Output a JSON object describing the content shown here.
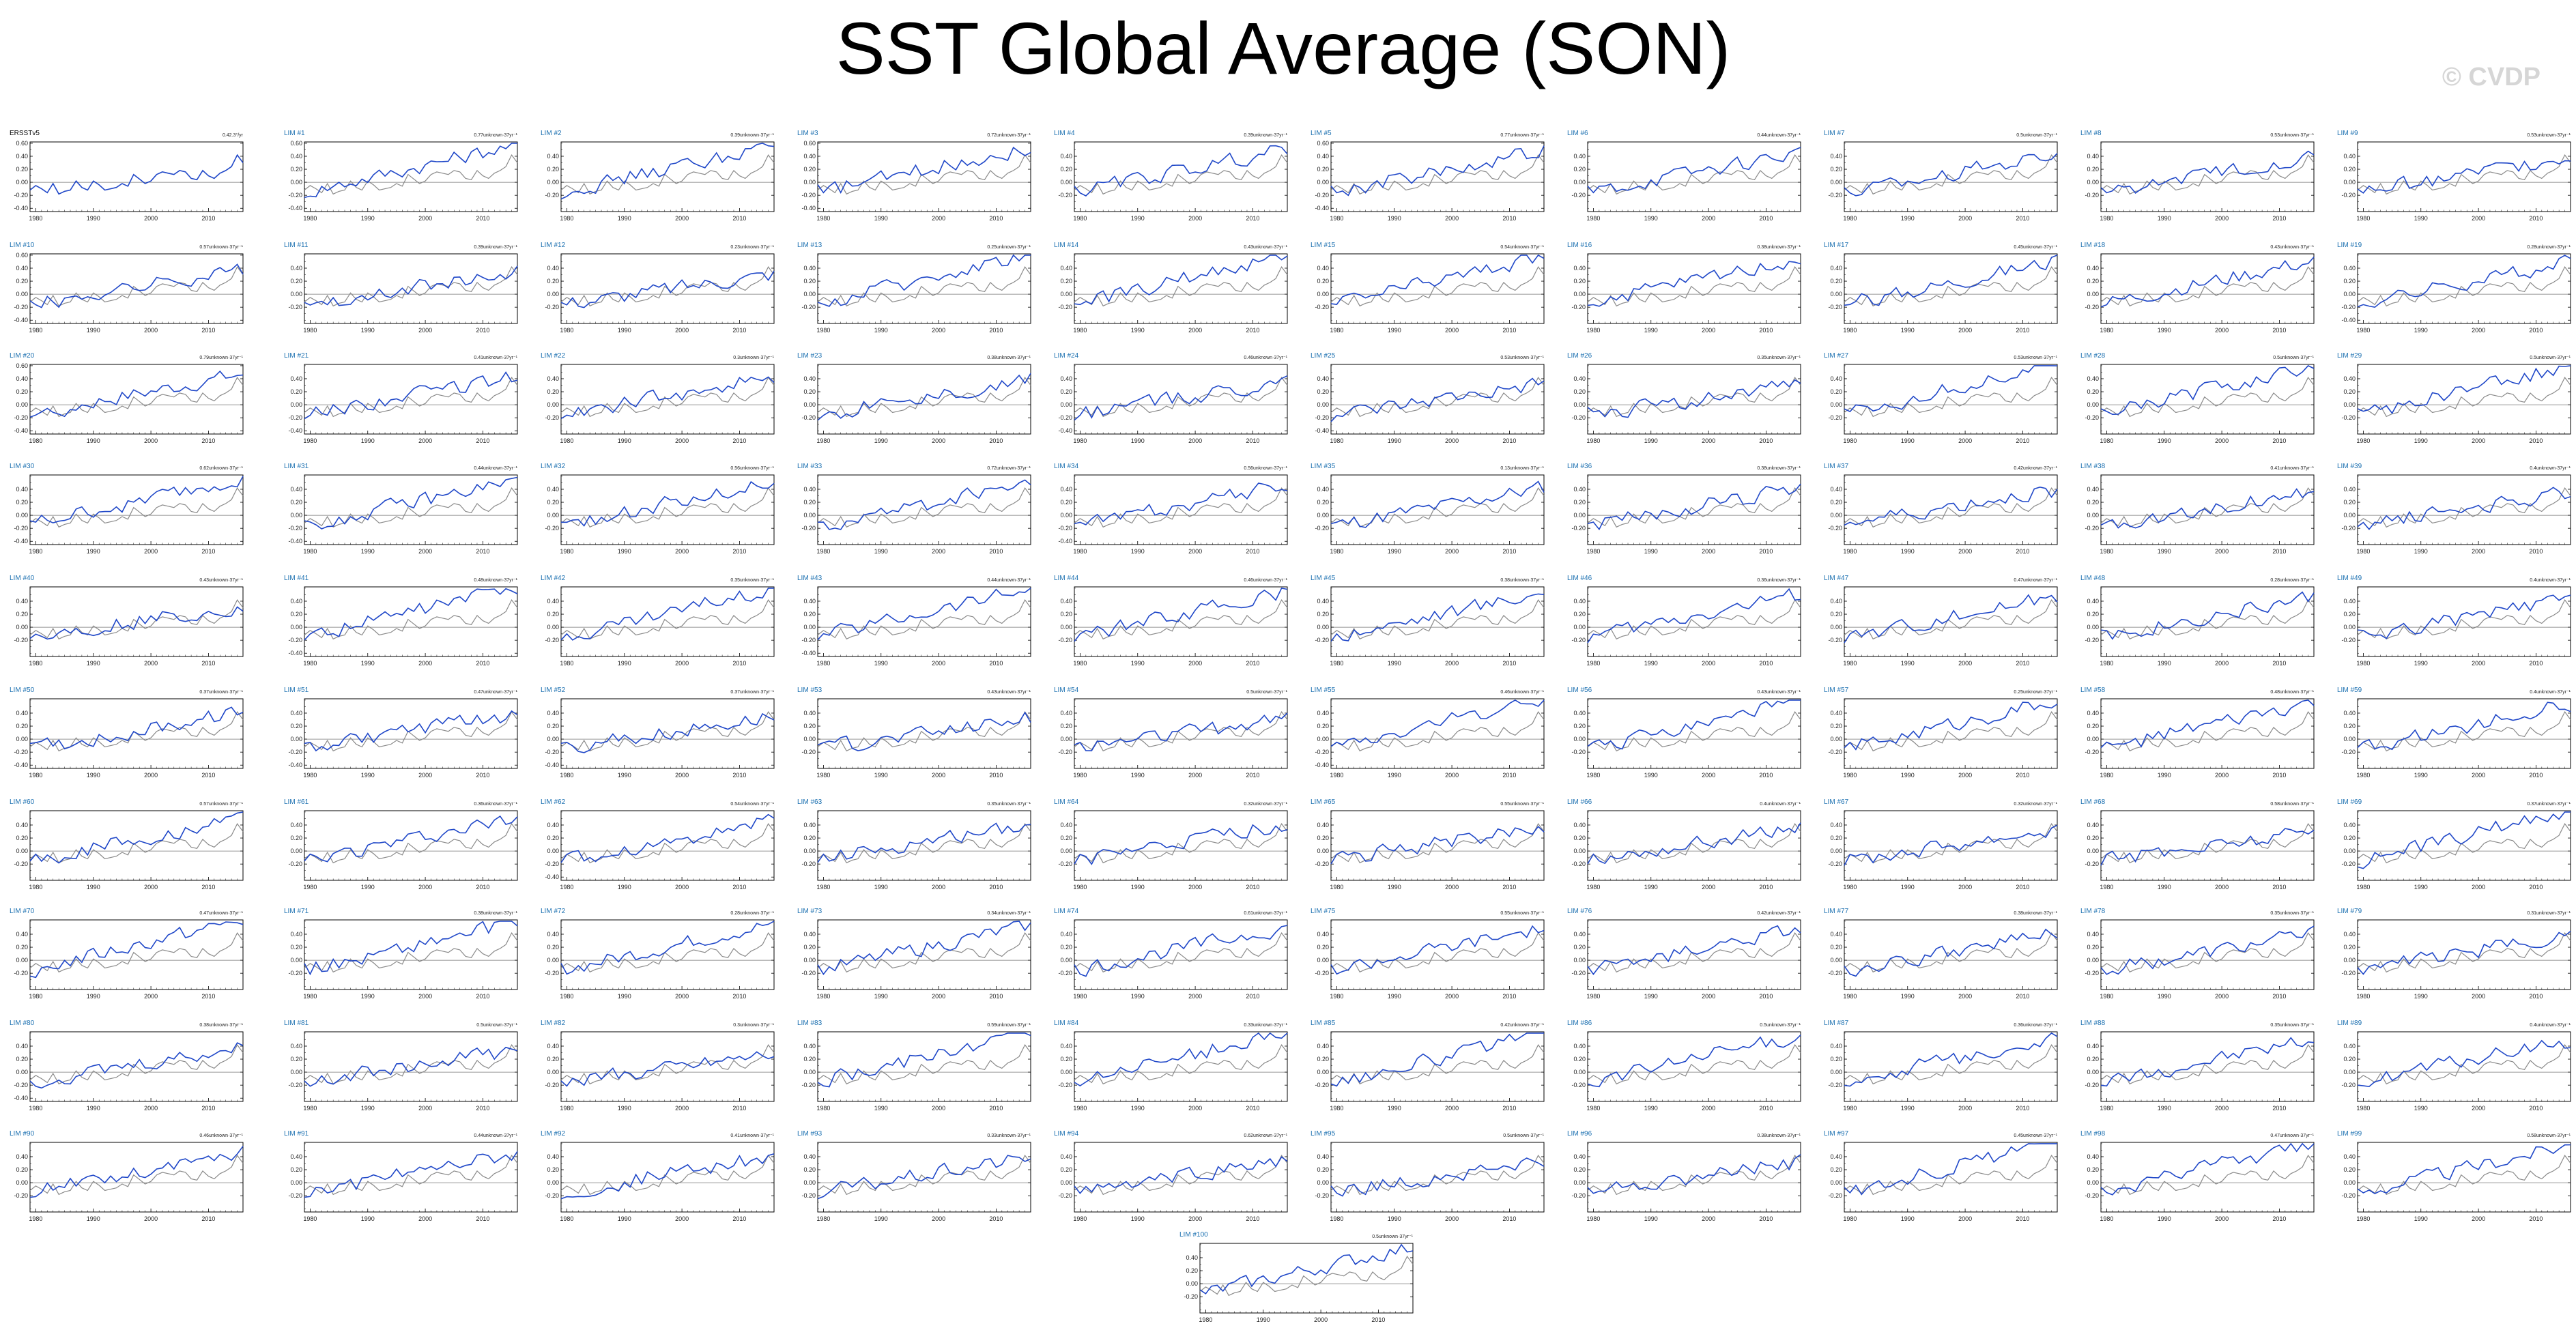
{
  "title": "SST Global Average (SON)",
  "watermark": "© CVDP",
  "colors": {
    "lim": "#1f47c8",
    "obs": "#111111",
    "obs_overlay": "#8a8a8a",
    "zero_line": "#777777",
    "title_lim": "#1a6fb0",
    "title_obs": "#000000"
  },
  "x_ticks": [
    "1980",
    "1990",
    "2000",
    "2010"
  ],
  "panels": [
    {
      "label": "ERSSTv5",
      "note": "0.42.3°/yr",
      "y_ticks": [
        "0.60",
        "0.40",
        "0.20",
        "0.00",
        "-0.20",
        "-0.40"
      ]
    },
    {
      "label": "LIM #1",
      "note": "0.77unknown·37yr⁻¹",
      "y_ticks": [
        "0.60",
        "0.40",
        "0.20",
        "0.00",
        "-0.20",
        "-0.40"
      ]
    },
    {
      "label": "LIM #2",
      "note": "0.39unknown·37yr⁻¹",
      "y_ticks": [
        "0.40",
        "0.20",
        "0.00",
        "-0.20"
      ]
    },
    {
      "label": "LIM #3",
      "note": "0.72unknown·37yr⁻¹",
      "y_ticks": [
        "0.60",
        "0.40",
        "0.20",
        "0.00",
        "-0.20",
        "-0.40"
      ]
    },
    {
      "label": "LIM #4",
      "note": "0.39unknown·37yr⁻¹",
      "y_ticks": [
        "0.40",
        "0.20",
        "0.00",
        "-0.20"
      ]
    },
    {
      "label": "LIM #5",
      "note": "0.77unknown·37yr⁻¹",
      "y_ticks": [
        "0.60",
        "0.40",
        "0.20",
        "0.00",
        "-0.20",
        "-0.40"
      ]
    },
    {
      "label": "LIM #6",
      "note": "0.44unknown·37yr⁻¹",
      "y_ticks": [
        "0.40",
        "0.20",
        "0.00",
        "-0.20"
      ]
    },
    {
      "label": "LIM #7",
      "note": "0.5unknown·37yr⁻¹",
      "y_ticks": [
        "0.40",
        "0.20",
        "0.00",
        "-0.20"
      ]
    },
    {
      "label": "LIM #8",
      "note": "0.53unknown·37yr⁻¹",
      "y_ticks": [
        "0.40",
        "0.20",
        "0.00",
        "-0.20"
      ]
    },
    {
      "label": "LIM #9",
      "note": "0.53unknown·37yr⁻¹",
      "y_ticks": [
        "0.40",
        "0.20",
        "0.00",
        "-0.20"
      ]
    },
    {
      "label": "LIM #10",
      "note": "0.57unknown·37yr⁻¹",
      "y_ticks": [
        "0.60",
        "0.40",
        "0.20",
        "0.00",
        "-0.20",
        "-0.40"
      ]
    },
    {
      "label": "LIM #11",
      "note": "0.39unknown·37yr⁻¹",
      "y_ticks": [
        "0.40",
        "0.20",
        "0.00",
        "-0.20"
      ]
    },
    {
      "label": "LIM #12",
      "note": "0.23unknown·37yr⁻¹",
      "y_ticks": [
        "0.40",
        "0.20",
        "0.00",
        "-0.20"
      ]
    },
    {
      "label": "LIM #13",
      "note": "0.25unknown·37yr⁻¹",
      "y_ticks": [
        "0.40",
        "0.20",
        "0.00",
        "-0.20"
      ]
    },
    {
      "label": "LIM #14",
      "note": "0.43unknown·37yr⁻¹",
      "y_ticks": [
        "0.40",
        "0.20",
        "0.00",
        "-0.20"
      ]
    },
    {
      "label": "LIM #15",
      "note": "0.54unknown·37yr⁻¹",
      "y_ticks": [
        "0.40",
        "0.20",
        "0.00",
        "-0.20"
      ]
    },
    {
      "label": "LIM #16",
      "note": "0.38unknown·37yr⁻¹",
      "y_ticks": [
        "0.40",
        "0.20",
        "0.00",
        "-0.20"
      ]
    },
    {
      "label": "LIM #17",
      "note": "0.45unknown·37yr⁻¹",
      "y_ticks": [
        "0.40",
        "0.20",
        "0.00",
        "-0.20"
      ]
    },
    {
      "label": "LIM #18",
      "note": "0.43unknown·37yr⁻¹",
      "y_ticks": [
        "0.40",
        "0.20",
        "0.00",
        "-0.20"
      ]
    },
    {
      "label": "LIM #19",
      "note": "0.28unknown·37yr⁻¹",
      "y_ticks": [
        "0.40",
        "0.20",
        "0.00",
        "-0.20",
        "-0.40"
      ]
    },
    {
      "label": "LIM #20",
      "note": "0.79unknown·37yr⁻¹",
      "y_ticks": [
        "0.60",
        "0.40",
        "0.20",
        "0.00",
        "-0.20",
        "-0.40"
      ]
    },
    {
      "label": "LIM #21",
      "note": "0.41unknown·37yr⁻¹",
      "y_ticks": [
        "0.40",
        "0.20",
        "0.00",
        "-0.20",
        "-0.40"
      ]
    },
    {
      "label": "LIM #22",
      "note": "0.3unknown·37yr⁻¹",
      "y_ticks": [
        "0.40",
        "0.20",
        "0.00",
        "-0.20"
      ]
    },
    {
      "label": "LIM #23",
      "note": "0.38unknown·37yr⁻¹",
      "y_ticks": [
        "0.40",
        "0.20",
        "0.00",
        "-0.20"
      ]
    },
    {
      "label": "LIM #24",
      "note": "0.46unknown·37yr⁻¹",
      "y_ticks": [
        "0.40",
        "0.20",
        "0.00",
        "-0.20",
        "-0.40"
      ]
    },
    {
      "label": "LIM #25",
      "note": "0.53unknown·37yr⁻¹",
      "y_ticks": [
        "0.40",
        "0.20",
        "0.00",
        "-0.20",
        "-0.40"
      ]
    },
    {
      "label": "LIM #26",
      "note": "0.35unknown·37yr⁻¹",
      "y_ticks": [
        "0.40",
        "0.20",
        "0.00",
        "-0.20"
      ]
    },
    {
      "label": "LIM #27",
      "note": "0.53unknown·37yr⁻¹",
      "y_ticks": [
        "0.40",
        "0.20",
        "0.00",
        "-0.20"
      ]
    },
    {
      "label": "LIM #28",
      "note": "0.5unknown·37yr⁻¹",
      "y_ticks": [
        "0.40",
        "0.20",
        "0.00",
        "-0.20"
      ]
    },
    {
      "label": "LIM #29",
      "note": "0.5unknown·37yr⁻¹",
      "y_ticks": [
        "0.40",
        "0.20",
        "0.00",
        "-0.20"
      ]
    },
    {
      "label": "LIM #30",
      "note": "0.62unknown·37yr⁻¹",
      "y_ticks": [
        "0.40",
        "0.20",
        "0.00",
        "-0.20",
        "-0.40"
      ]
    },
    {
      "label": "LIM #31",
      "note": "0.44unknown·37yr⁻¹",
      "y_ticks": [
        "0.40",
        "0.20",
        "0.00",
        "-0.20",
        "-0.40"
      ]
    },
    {
      "label": "LIM #32",
      "note": "0.56unknown·37yr⁻¹",
      "y_ticks": [
        "0.40",
        "0.20",
        "0.00",
        "-0.20"
      ]
    },
    {
      "label": "LIM #33",
      "note": "0.72unknown·37yr⁻¹",
      "y_ticks": [
        "0.40",
        "0.20",
        "0.00",
        "-0.20"
      ]
    },
    {
      "label": "LIM #34",
      "note": "0.56unknown·37yr⁻¹",
      "y_ticks": [
        "0.40",
        "0.20",
        "0.00",
        "-0.20",
        "-0.40"
      ]
    },
    {
      "label": "LIM #35",
      "note": "0.13unknown·37yr⁻¹",
      "y_ticks": [
        "0.40",
        "0.20",
        "0.00",
        "-0.20"
      ]
    },
    {
      "label": "LIM #36",
      "note": "0.38unknown·37yr⁻¹",
      "y_ticks": [
        "0.40",
        "0.20",
        "0.00",
        "-0.20"
      ]
    },
    {
      "label": "LIM #37",
      "note": "0.42unknown·37yr⁻¹",
      "y_ticks": [
        "0.40",
        "0.20",
        "0.00",
        "-0.20"
      ]
    },
    {
      "label": "LIM #38",
      "note": "0.41unknown·37yr⁻¹",
      "y_ticks": [
        "0.40",
        "0.20",
        "0.00",
        "-0.20"
      ]
    },
    {
      "label": "LIM #39",
      "note": "0.4unknown·37yr⁻¹",
      "y_ticks": [
        "0.40",
        "0.20",
        "0.00",
        "-0.20"
      ]
    },
    {
      "label": "LIM #40",
      "note": "0.43unknown·37yr⁻¹",
      "y_ticks": [
        "0.40",
        "0.20",
        "0.00",
        "-0.20"
      ]
    },
    {
      "label": "LIM #41",
      "note": "0.48unknown·37yr⁻¹",
      "y_ticks": [
        "0.40",
        "0.20",
        "0.00",
        "-0.20",
        "-0.40"
      ]
    },
    {
      "label": "LIM #42",
      "note": "0.35unknown·37yr⁻¹",
      "y_ticks": [
        "0.40",
        "0.20",
        "0.00",
        "-0.20"
      ]
    },
    {
      "label": "LIM #43",
      "note": "0.44unknown·37yr⁻¹",
      "y_ticks": [
        "0.40",
        "0.20",
        "0.00",
        "-0.20",
        "-0.40"
      ]
    },
    {
      "label": "LIM #44",
      "note": "0.46unknown·37yr⁻¹",
      "y_ticks": [
        "0.40",
        "0.20",
        "0.00",
        "-0.20"
      ]
    },
    {
      "label": "LIM #45",
      "note": "0.38unknown·37yr⁻¹",
      "y_ticks": [
        "0.40",
        "0.20",
        "0.00",
        "-0.20"
      ]
    },
    {
      "label": "LIM #46",
      "note": "0.36unknown·37yr⁻¹",
      "y_ticks": [
        "0.40",
        "0.20",
        "0.00",
        "-0.20"
      ]
    },
    {
      "label": "LIM #47",
      "note": "0.47unknown·37yr⁻¹",
      "y_ticks": [
        "0.40",
        "0.20",
        "0.00",
        "-0.20"
      ]
    },
    {
      "label": "LIM #48",
      "note": "0.28unknown·37yr⁻¹",
      "y_ticks": [
        "0.40",
        "0.20",
        "0.00",
        "-0.20"
      ]
    },
    {
      "label": "LIM #49",
      "note": "0.4unknown·37yr⁻¹",
      "y_ticks": [
        "0.40",
        "0.20",
        "0.00",
        "-0.20"
      ]
    },
    {
      "label": "LIM #50",
      "note": "0.37unknown·37yr⁻¹",
      "y_ticks": [
        "0.40",
        "0.20",
        "0.00",
        "-0.20",
        "-0.40"
      ]
    },
    {
      "label": "LIM #51",
      "note": "0.47unknown·37yr⁻¹",
      "y_ticks": [
        "0.40",
        "0.20",
        "0.00",
        "-0.20",
        "-0.40"
      ]
    },
    {
      "label": "LIM #52",
      "note": "0.37unknown·37yr⁻¹",
      "y_ticks": [
        "0.40",
        "0.20",
        "0.00",
        "-0.20",
        "-0.40"
      ]
    },
    {
      "label": "LIM #53",
      "note": "0.43unknown·37yr⁻¹",
      "y_ticks": [
        "0.40",
        "0.20",
        "0.00",
        "-0.20"
      ]
    },
    {
      "label": "LIM #54",
      "note": "0.5unknown·37yr⁻¹",
      "y_ticks": [
        "0.40",
        "0.20",
        "0.00",
        "-0.20"
      ]
    },
    {
      "label": "LIM #55",
      "note": "0.46unknown·37yr⁻¹",
      "y_ticks": [
        "0.40",
        "0.20",
        "0.00",
        "-0.20",
        "-0.40"
      ]
    },
    {
      "label": "LIM #56",
      "note": "0.43unknown·37yr⁻¹",
      "y_ticks": [
        "0.40",
        "0.20",
        "0.00",
        "-0.20"
      ]
    },
    {
      "label": "LIM #57",
      "note": "0.25unknown·37yr⁻¹",
      "y_ticks": [
        "0.40",
        "0.20",
        "0.00",
        "-0.20"
      ]
    },
    {
      "label": "LIM #58",
      "note": "0.48unknown·37yr⁻¹",
      "y_ticks": [
        "0.40",
        "0.20",
        "0.00",
        "-0.20"
      ]
    },
    {
      "label": "LIM #59",
      "note": "0.4unknown·37yr⁻¹",
      "y_ticks": [
        "0.40",
        "0.20",
        "0.00",
        "-0.20"
      ]
    },
    {
      "label": "LIM #60",
      "note": "0.57unknown·37yr⁻¹",
      "y_ticks": [
        "0.40",
        "0.20",
        "0.00",
        "-0.20"
      ]
    },
    {
      "label": "LIM #61",
      "note": "0.36unknown·37yr⁻¹",
      "y_ticks": [
        "0.40",
        "0.20",
        "0.00",
        "-0.20"
      ]
    },
    {
      "label": "LIM #62",
      "note": "0.54unknown·37yr⁻¹",
      "y_ticks": [
        "0.40",
        "0.20",
        "0.00",
        "-0.20",
        "-0.40"
      ]
    },
    {
      "label": "LIM #63",
      "note": "0.35unknown·37yr⁻¹",
      "y_ticks": [
        "0.40",
        "0.20",
        "0.00",
        "-0.20"
      ]
    },
    {
      "label": "LIM #64",
      "note": "0.32unknown·37yr⁻¹",
      "y_ticks": [
        "0.40",
        "0.20",
        "0.00",
        "-0.20"
      ]
    },
    {
      "label": "LIM #65",
      "note": "0.55unknown·37yr⁻¹",
      "y_ticks": [
        "0.40",
        "0.20",
        "0.00",
        "-0.20"
      ]
    },
    {
      "label": "LIM #66",
      "note": "0.4unknown·37yr⁻¹",
      "y_ticks": [
        "0.40",
        "0.20",
        "0.00",
        "-0.20"
      ]
    },
    {
      "label": "LIM #67",
      "note": "0.32unknown·37yr⁻¹",
      "y_ticks": [
        "0.40",
        "0.20",
        "0.00",
        "-0.20"
      ]
    },
    {
      "label": "LIM #68",
      "note": "0.58unknown·37yr⁻¹",
      "y_ticks": [
        "0.40",
        "0.20",
        "0.00",
        "-0.20"
      ]
    },
    {
      "label": "LIM #69",
      "note": "0.37unknown·37yr⁻¹",
      "y_ticks": [
        "0.40",
        "0.20",
        "0.00",
        "-0.20"
      ]
    },
    {
      "label": "LIM #70",
      "note": "0.47unknown·37yr⁻¹",
      "y_ticks": [
        "0.40",
        "0.20",
        "0.00",
        "-0.20"
      ]
    },
    {
      "label": "LIM #71",
      "note": "0.38unknown·37yr⁻¹",
      "y_ticks": [
        "0.40",
        "0.20",
        "0.00",
        "-0.20"
      ]
    },
    {
      "label": "LIM #72",
      "note": "0.28unknown·37yr⁻¹",
      "y_ticks": [
        "0.40",
        "0.20",
        "0.00",
        "-0.20"
      ]
    },
    {
      "label": "LIM #73",
      "note": "0.34unknown·37yr⁻¹",
      "y_ticks": [
        "0.40",
        "0.20",
        "0.00",
        "-0.20"
      ]
    },
    {
      "label": "LIM #74",
      "note": "0.61unknown·37yr⁻¹",
      "y_ticks": [
        "0.40",
        "0.20",
        "0.00",
        "-0.20"
      ]
    },
    {
      "label": "LIM #75",
      "note": "0.55unknown·37yr⁻¹",
      "y_ticks": [
        "0.40",
        "0.20",
        "0.00",
        "-0.20"
      ]
    },
    {
      "label": "LIM #76",
      "note": "0.42unknown·37yr⁻¹",
      "y_ticks": [
        "0.40",
        "0.20",
        "0.00",
        "-0.20"
      ]
    },
    {
      "label": "LIM #77",
      "note": "0.38unknown·37yr⁻¹",
      "y_ticks": [
        "0.40",
        "0.20",
        "0.00",
        "-0.20"
      ]
    },
    {
      "label": "LIM #78",
      "note": "0.35unknown·37yr⁻¹",
      "y_ticks": [
        "0.40",
        "0.20",
        "0.00",
        "-0.20"
      ]
    },
    {
      "label": "LIM #79",
      "note": "0.31unknown·37yr⁻¹",
      "y_ticks": [
        "0.40",
        "0.20",
        "0.00",
        "-0.20"
      ]
    },
    {
      "label": "LIM #80",
      "note": "0.38unknown·37yr⁻¹",
      "y_ticks": [
        "0.40",
        "0.20",
        "0.00",
        "-0.20",
        "-0.40"
      ]
    },
    {
      "label": "LIM #81",
      "note": "0.5unknown·37yr⁻¹",
      "y_ticks": [
        "0.40",
        "0.20",
        "0.00",
        "-0.20"
      ]
    },
    {
      "label": "LIM #82",
      "note": "0.3unknown·37yr⁻¹",
      "y_ticks": [
        "0.40",
        "0.20",
        "0.00",
        "-0.20"
      ]
    },
    {
      "label": "LIM #83",
      "note": "0.59unknown·37yr⁻¹",
      "y_ticks": [
        "0.40",
        "0.20",
        "0.00",
        "-0.20"
      ]
    },
    {
      "label": "LIM #84",
      "note": "0.33unknown·37yr⁻¹",
      "y_ticks": [
        "0.40",
        "0.20",
        "0.00",
        "-0.20"
      ]
    },
    {
      "label": "LIM #85",
      "note": "0.42unknown·37yr⁻¹",
      "y_ticks": [
        "0.40",
        "0.20",
        "0.00",
        "-0.20"
      ]
    },
    {
      "label": "LIM #86",
      "note": "0.5unknown·37yr⁻¹",
      "y_ticks": [
        "0.40",
        "0.20",
        "0.00",
        "-0.20"
      ]
    },
    {
      "label": "LIM #87",
      "note": "0.36unknown·37yr⁻¹",
      "y_ticks": [
        "0.40",
        "0.20",
        "0.00",
        "-0.20"
      ]
    },
    {
      "label": "LIM #88",
      "note": "0.35unknown·37yr⁻¹",
      "y_ticks": [
        "0.40",
        "0.20",
        "0.00",
        "-0.20"
      ]
    },
    {
      "label": "LIM #89",
      "note": "0.4unknown·37yr⁻¹",
      "y_ticks": [
        "0.40",
        "0.20",
        "0.00",
        "-0.20"
      ]
    },
    {
      "label": "LIM #90",
      "note": "0.46unknown·37yr⁻¹",
      "y_ticks": [
        "0.40",
        "0.20",
        "0.00",
        "-0.20"
      ]
    },
    {
      "label": "LIM #91",
      "note": "0.44unknown·37yr⁻¹",
      "y_ticks": [
        "0.40",
        "0.20",
        "0.00",
        "-0.20"
      ]
    },
    {
      "label": "LIM #92",
      "note": "0.41unknown·37yr⁻¹",
      "y_ticks": [
        "0.40",
        "0.20",
        "0.00",
        "-0.20"
      ]
    },
    {
      "label": "LIM #93",
      "note": "0.33unknown·37yr⁻¹",
      "y_ticks": [
        "0.40",
        "0.20",
        "0.00",
        "-0.20"
      ]
    },
    {
      "label": "LIM #94",
      "note": "0.62unknown·37yr⁻¹",
      "y_ticks": [
        "0.40",
        "0.20",
        "0.00",
        "-0.20"
      ]
    },
    {
      "label": "LIM #95",
      "note": "0.5unknown·37yr⁻¹",
      "y_ticks": [
        "0.40",
        "0.20",
        "0.00",
        "-0.20"
      ]
    },
    {
      "label": "LIM #96",
      "note": "0.38unknown·37yr⁻¹",
      "y_ticks": [
        "0.40",
        "0.20",
        "0.00",
        "-0.20"
      ]
    },
    {
      "label": "LIM #97",
      "note": "0.45unknown·37yr⁻¹",
      "y_ticks": [
        "0.40",
        "0.20",
        "0.00",
        "-0.20"
      ]
    },
    {
      "label": "LIM #98",
      "note": "0.47unknown·37yr⁻¹",
      "y_ticks": [
        "0.40",
        "0.20",
        "0.00",
        "-0.20"
      ]
    },
    {
      "label": "LIM #99",
      "note": "0.58unknown·37yr⁻¹",
      "y_ticks": [
        "0.40",
        "0.20",
        "0.00",
        "-0.20"
      ]
    },
    {
      "label": "LIM #100",
      "note": "0.5unknown·37yr⁻¹",
      "y_ticks": [
        "0.40",
        "0.20",
        "0.00",
        "-0.20"
      ]
    }
  ],
  "chart_data": {
    "type": "line",
    "title": "SST Global Average (SON)",
    "grid": false,
    "layout": "10 columns x 10 rows of small multiples plus one centered panel in an 11th row",
    "x_range": [
      1979,
      2016
    ],
    "x_ticks": [
      1980,
      1990,
      2000,
      2010
    ],
    "observations": {
      "name": "ERSSTv5",
      "x": [
        1979,
        1980,
        1981,
        1982,
        1983,
        1984,
        1985,
        1986,
        1987,
        1988,
        1989,
        1990,
        1991,
        1992,
        1993,
        1994,
        1995,
        1996,
        1997,
        1998,
        1999,
        2000,
        2001,
        2002,
        2003,
        2004,
        2005,
        2006,
        2007,
        2008,
        2009,
        2010,
        2011,
        2012,
        2013,
        2014,
        2015,
        2016
      ],
      "y": [
        -0.12,
        -0.05,
        -0.1,
        -0.16,
        -0.02,
        -0.18,
        -0.14,
        -0.12,
        0.02,
        -0.08,
        -0.12,
        0.02,
        -0.04,
        -0.12,
        -0.1,
        -0.08,
        -0.02,
        -0.06,
        0.12,
        0.05,
        -0.02,
        0.02,
        0.12,
        0.16,
        0.14,
        0.12,
        0.18,
        0.16,
        0.06,
        0.04,
        0.18,
        0.1,
        0.06,
        0.14,
        0.18,
        0.24,
        0.42,
        0.3
      ]
    },
    "series_note": "Each LIM panel shows one blue LIM member series over the gray ERSSTv5 series; values are relative to a zero reference line."
  }
}
